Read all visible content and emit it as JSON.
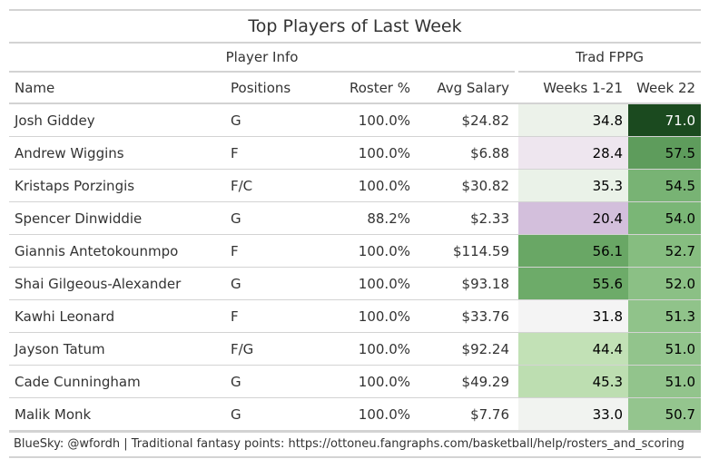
{
  "title": "Top Players of Last Week",
  "spanners": {
    "player_info": "Player Info",
    "trad_fppg": "Trad FPPG"
  },
  "columns": {
    "name": "Name",
    "positions": "Positions",
    "roster_pct": "Roster %",
    "avg_salary": "Avg Salary",
    "weeks_1_21": "Weeks 1-21",
    "week_22": "Week 22"
  },
  "colors": {
    "rule": "#d3d3d3",
    "scale_low": "#d3bfdc",
    "scale_mid": "#f7f7f7",
    "scale_high": "#1b4a1f"
  },
  "rows": [
    {
      "name": "Josh Giddey",
      "positions": "G",
      "roster_pct": "100.0%",
      "avg_salary": "$24.82",
      "weeks_1_21": "34.8",
      "week_22": "71.0",
      "w1_color": "#ecf2ea",
      "w22_color": "#1b4a1f",
      "w22_dark": true
    },
    {
      "name": "Andrew Wiggins",
      "positions": "F",
      "roster_pct": "100.0%",
      "avg_salary": "$6.88",
      "weeks_1_21": "28.4",
      "week_22": "57.5",
      "w1_color": "#eee6ef",
      "w22_color": "#5e9c5c",
      "w22_dark": false
    },
    {
      "name": "Kristaps Porzingis",
      "positions": "F/C",
      "roster_pct": "100.0%",
      "avg_salary": "$30.82",
      "weeks_1_21": "35.3",
      "week_22": "54.5",
      "w1_color": "#eaf2e8",
      "w22_color": "#78b374",
      "w22_dark": false
    },
    {
      "name": "Spencer Dinwiddie",
      "positions": "G",
      "roster_pct": "88.2%",
      "avg_salary": "$2.33",
      "weeks_1_21": "20.4",
      "week_22": "54.0",
      "w1_color": "#d3bfdc",
      "w22_color": "#7ab676",
      "w22_dark": false
    },
    {
      "name": "Giannis Antetokounmpo",
      "positions": "F",
      "roster_pct": "100.0%",
      "avg_salary": "$114.59",
      "weeks_1_21": "56.1",
      "week_22": "52.7",
      "w1_color": "#69a765",
      "w22_color": "#86bd80",
      "w22_dark": false
    },
    {
      "name": "Shai Gilgeous-Alexander",
      "positions": "G",
      "roster_pct": "100.0%",
      "avg_salary": "$93.18",
      "weeks_1_21": "55.6",
      "week_22": "52.0",
      "w1_color": "#6dab69",
      "w22_color": "#8bc085",
      "w22_dark": false
    },
    {
      "name": "Kawhi Leonard",
      "positions": "F",
      "roster_pct": "100.0%",
      "avg_salary": "$33.76",
      "weeks_1_21": "31.8",
      "week_22": "51.3",
      "w1_color": "#f4f4f4",
      "w22_color": "#90c38a",
      "w22_dark": false
    },
    {
      "name": "Jayson Tatum",
      "positions": "F/G",
      "roster_pct": "100.0%",
      "avg_salary": "$92.24",
      "weeks_1_21": "44.4",
      "week_22": "51.0",
      "w1_color": "#c2e1b6",
      "w22_color": "#92c48c",
      "w22_dark": false
    },
    {
      "name": "Cade Cunningham",
      "positions": "G",
      "roster_pct": "100.0%",
      "avg_salary": "$49.29",
      "weeks_1_21": "45.3",
      "week_22": "51.0",
      "w1_color": "#bddeb1",
      "w22_color": "#92c48c",
      "w22_dark": false
    },
    {
      "name": "Malik Monk",
      "positions": "G",
      "roster_pct": "100.0%",
      "avg_salary": "$7.76",
      "weeks_1_21": "33.0",
      "week_22": "50.7",
      "w1_color": "#f1f3f0",
      "w22_color": "#94c58e",
      "w22_dark": false
    }
  ],
  "footer": "BlueSky: @wfordh | Traditional fantasy points: https://ottoneu.fangraphs.com/basketball/help/rosters_and_scoring"
}
